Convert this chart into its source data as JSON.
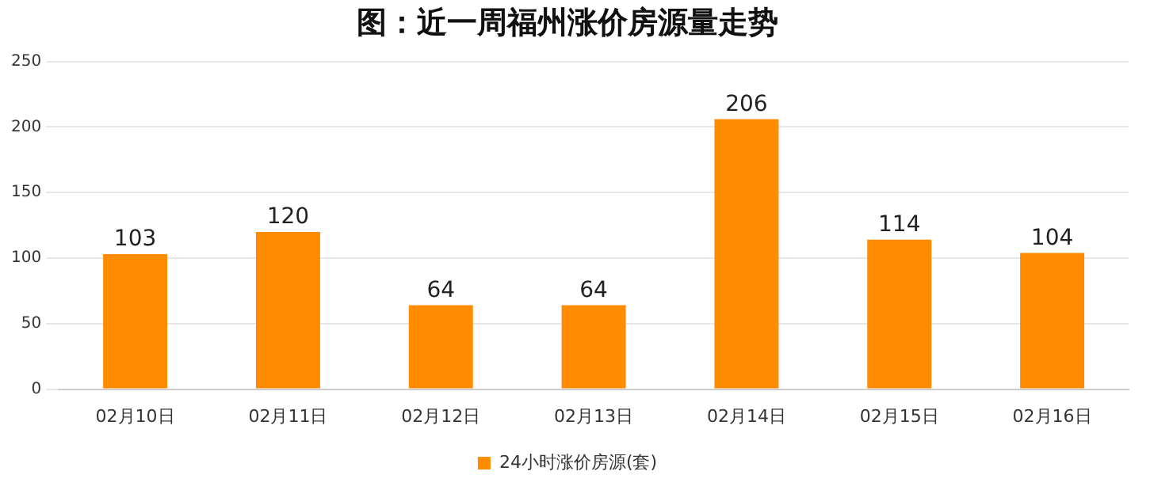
{
  "chart_data": {
    "type": "bar",
    "title": "图：近一周福州涨价房源量走势",
    "categories": [
      "02月10日",
      "02月11日",
      "02月12日",
      "02月13日",
      "02月14日",
      "02月15日",
      "02月16日"
    ],
    "series": [
      {
        "name": "24小时涨价房源(套)",
        "color": "#ff8c00",
        "values": [
          103,
          120,
          64,
          64,
          206,
          114,
          104
        ]
      }
    ],
    "ylim": [
      0,
      250
    ],
    "yticks": [
      0,
      50,
      100,
      150,
      200,
      250
    ],
    "grid": "y",
    "legend": "bottom",
    "data_labels": true
  }
}
